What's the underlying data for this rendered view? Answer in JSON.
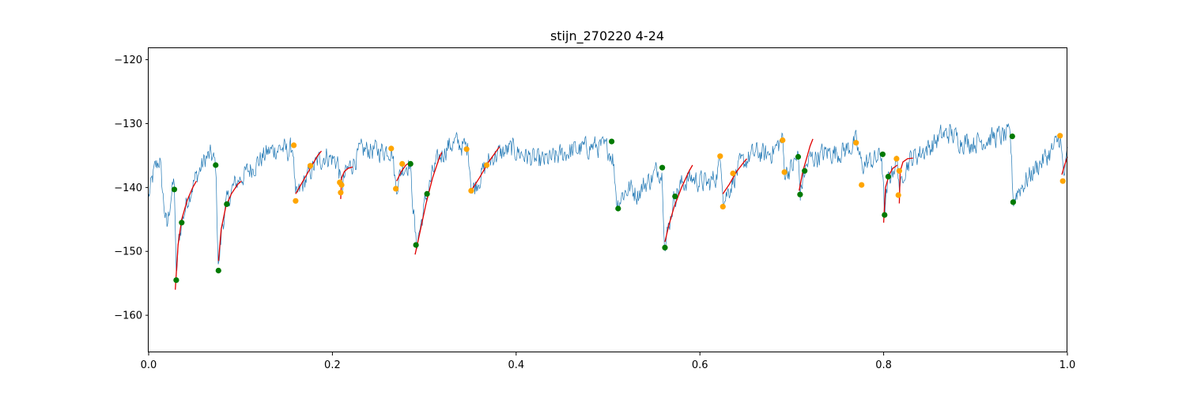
{
  "chart_data": {
    "type": "line",
    "title": "stijn_270220 4-24",
    "xlabel": "",
    "ylabel": "",
    "xlim": [
      0.0,
      1.0
    ],
    "ylim": [
      -165.8,
      -118.2
    ],
    "xticks": [
      0.0,
      0.2,
      0.4,
      0.6,
      0.8,
      1.0
    ],
    "xtick_labels": [
      "0.0",
      "0.2",
      "0.4",
      "0.6",
      "0.8",
      "1.0"
    ],
    "yticks": [
      -160,
      -150,
      -140,
      -130,
      -120
    ],
    "ytick_labels": [
      "−160",
      "−150",
      "−140",
      "−130",
      "−120"
    ],
    "grid": false,
    "colors": {
      "trace": "#1f77b4",
      "fit": "#e00000",
      "green_marker": "#007a00",
      "orange_marker": "#ffa500"
    },
    "trace_anchors": [
      [
        0.0,
        -141.5
      ],
      [
        0.006,
        -137.5
      ],
      [
        0.012,
        -135.5
      ],
      [
        0.016,
        -142.0
      ],
      [
        0.02,
        -146.5
      ],
      [
        0.024,
        -141.5
      ],
      [
        0.028,
        -139.0
      ],
      [
        0.03,
        -154.5
      ],
      [
        0.033,
        -148.0
      ],
      [
        0.036,
        -145.5
      ],
      [
        0.042,
        -142.0
      ],
      [
        0.048,
        -139.5
      ],
      [
        0.055,
        -137.5
      ],
      [
        0.062,
        -135.5
      ],
      [
        0.068,
        -135.0
      ],
      [
        0.073,
        -136.5
      ],
      [
        0.076,
        -153.0
      ],
      [
        0.08,
        -146.0
      ],
      [
        0.085,
        -142.5
      ],
      [
        0.092,
        -140.0
      ],
      [
        0.1,
        -138.5
      ],
      [
        0.108,
        -137.5
      ],
      [
        0.115,
        -136.5
      ],
      [
        0.122,
        -135.5
      ],
      [
        0.13,
        -134.5
      ],
      [
        0.138,
        -134.0
      ],
      [
        0.145,
        -133.8
      ],
      [
        0.152,
        -134.5
      ],
      [
        0.157,
        -133.5
      ],
      [
        0.16,
        -142.0
      ],
      [
        0.168,
        -139.5
      ],
      [
        0.176,
        -137.5
      ],
      [
        0.184,
        -136.0
      ],
      [
        0.192,
        -135.0
      ],
      [
        0.2,
        -135.5
      ],
      [
        0.206,
        -136.0
      ],
      [
        0.21,
        -140.5
      ],
      [
        0.214,
        -138.0
      ],
      [
        0.22,
        -136.5
      ],
      [
        0.23,
        -134.5
      ],
      [
        0.24,
        -134.0
      ],
      [
        0.25,
        -134.3
      ],
      [
        0.26,
        -134.0
      ],
      [
        0.265,
        -134.0
      ],
      [
        0.269,
        -140.0
      ],
      [
        0.276,
        -137.0
      ],
      [
        0.284,
        -136.0
      ],
      [
        0.288,
        -143.0
      ],
      [
        0.291,
        -149.0
      ],
      [
        0.296,
        -146.0
      ],
      [
        0.303,
        -141.0
      ],
      [
        0.31,
        -137.5
      ],
      [
        0.318,
        -135.0
      ],
      [
        0.326,
        -133.5
      ],
      [
        0.334,
        -133.0
      ],
      [
        0.342,
        -133.5
      ],
      [
        0.348,
        -134.0
      ],
      [
        0.352,
        -140.5
      ],
      [
        0.36,
        -138.5
      ],
      [
        0.368,
        -136.5
      ],
      [
        0.376,
        -135.0
      ],
      [
        0.386,
        -134.5
      ],
      [
        0.396,
        -134.0
      ],
      [
        0.41,
        -135.0
      ],
      [
        0.425,
        -136.0
      ],
      [
        0.44,
        -135.5
      ],
      [
        0.455,
        -134.5
      ],
      [
        0.47,
        -134.0
      ],
      [
        0.485,
        -133.5
      ],
      [
        0.5,
        -134.0
      ],
      [
        0.505,
        -135.0
      ],
      [
        0.51,
        -142.5
      ],
      [
        0.516,
        -141.0
      ],
      [
        0.524,
        -140.0
      ],
      [
        0.532,
        -141.0
      ],
      [
        0.54,
        -139.5
      ],
      [
        0.548,
        -138.5
      ],
      [
        0.555,
        -137.0
      ],
      [
        0.559,
        -138.0
      ],
      [
        0.562,
        -149.5
      ],
      [
        0.566,
        -146.0
      ],
      [
        0.572,
        -141.5
      ],
      [
        0.58,
        -139.5
      ],
      [
        0.59,
        -138.5
      ],
      [
        0.6,
        -139.0
      ],
      [
        0.61,
        -139.5
      ],
      [
        0.618,
        -138.0
      ],
      [
        0.623,
        -135.5
      ],
      [
        0.626,
        -142.0
      ],
      [
        0.634,
        -139.5
      ],
      [
        0.642,
        -137.0
      ],
      [
        0.652,
        -135.5
      ],
      [
        0.662,
        -134.5
      ],
      [
        0.672,
        -135.0
      ],
      [
        0.682,
        -134.0
      ],
      [
        0.69,
        -132.5
      ],
      [
        0.692,
        -137.5
      ],
      [
        0.7,
        -137.0
      ],
      [
        0.707,
        -135.0
      ],
      [
        0.709,
        -141.0
      ],
      [
        0.714,
        -137.5
      ],
      [
        0.72,
        -135.5
      ],
      [
        0.73,
        -135.0
      ],
      [
        0.74,
        -134.5
      ],
      [
        0.75,
        -134.5
      ],
      [
        0.76,
        -134.0
      ],
      [
        0.77,
        -133.0
      ],
      [
        0.776,
        -136.5
      ],
      [
        0.784,
        -136.0
      ],
      [
        0.792,
        -135.5
      ],
      [
        0.798,
        -134.8
      ],
      [
        0.801,
        -144.5
      ],
      [
        0.805,
        -139.0
      ],
      [
        0.81,
        -137.0
      ],
      [
        0.815,
        -136.0
      ],
      [
        0.818,
        -141.0
      ],
      [
        0.822,
        -137.0
      ],
      [
        0.83,
        -135.5
      ],
      [
        0.84,
        -134.5
      ],
      [
        0.852,
        -133.5
      ],
      [
        0.862,
        -132.0
      ],
      [
        0.872,
        -131.5
      ],
      [
        0.882,
        -132.5
      ],
      [
        0.895,
        -133.0
      ],
      [
        0.91,
        -132.5
      ],
      [
        0.925,
        -132.0
      ],
      [
        0.938,
        -132.0
      ],
      [
        0.941,
        -142.0
      ],
      [
        0.946,
        -140.5
      ],
      [
        0.955,
        -139.0
      ],
      [
        0.965,
        -137.0
      ],
      [
        0.975,
        -135.5
      ],
      [
        0.985,
        -134.0
      ],
      [
        0.992,
        -132.0
      ],
      [
        0.996,
        -138.5
      ],
      [
        1.0,
        -135.0
      ]
    ],
    "fits": [
      [
        [
          0.029,
          -156.0
        ],
        [
          0.032,
          -149.0
        ],
        [
          0.036,
          -145.0
        ],
        [
          0.042,
          -142.0
        ],
        [
          0.048,
          -140.0
        ],
        [
          0.052,
          -139.0
        ]
      ],
      [
        [
          0.076,
          -151.5
        ],
        [
          0.079,
          -146.5
        ],
        [
          0.084,
          -143.0
        ],
        [
          0.09,
          -141.0
        ],
        [
          0.097,
          -139.5
        ],
        [
          0.101,
          -139.0
        ]
      ],
      [
        [
          0.16,
          -141.0
        ],
        [
          0.168,
          -139.0
        ],
        [
          0.176,
          -137.0
        ],
        [
          0.184,
          -135.0
        ],
        [
          0.188,
          -134.3
        ]
      ],
      [
        [
          0.209,
          -141.8
        ],
        [
          0.21,
          -138.5
        ],
        [
          0.213,
          -137.5
        ],
        [
          0.217,
          -137.0
        ],
        [
          0.222,
          -136.8
        ]
      ],
      [
        [
          0.27,
          -139.0
        ],
        [
          0.275,
          -137.5
        ],
        [
          0.28,
          -136.5
        ],
        [
          0.285,
          -136.0
        ]
      ],
      [
        [
          0.29,
          -150.5
        ],
        [
          0.296,
          -146.5
        ],
        [
          0.302,
          -142.5
        ],
        [
          0.309,
          -138.5
        ],
        [
          0.316,
          -135.5
        ],
        [
          0.319,
          -134.5
        ]
      ],
      [
        [
          0.351,
          -140.5
        ],
        [
          0.36,
          -138.5
        ],
        [
          0.37,
          -136.0
        ],
        [
          0.38,
          -134.0
        ],
        [
          0.382,
          -133.6
        ]
      ],
      [
        [
          0.562,
          -148.5
        ],
        [
          0.566,
          -146.0
        ],
        [
          0.572,
          -143.0
        ],
        [
          0.58,
          -140.0
        ],
        [
          0.588,
          -137.5
        ],
        [
          0.592,
          -136.5
        ]
      ],
      [
        [
          0.625,
          -141.0
        ],
        [
          0.632,
          -139.5
        ],
        [
          0.64,
          -137.5
        ],
        [
          0.648,
          -136.0
        ],
        [
          0.651,
          -135.5
        ]
      ],
      [
        [
          0.708,
          -140.5
        ],
        [
          0.712,
          -137.5
        ],
        [
          0.716,
          -135.5
        ],
        [
          0.72,
          -133.5
        ],
        [
          0.723,
          -132.4
        ]
      ],
      [
        [
          0.8,
          -145.5
        ],
        [
          0.802,
          -140.0
        ],
        [
          0.806,
          -138.0
        ],
        [
          0.81,
          -137.0
        ],
        [
          0.815,
          -136.5
        ]
      ],
      [
        [
          0.817,
          -142.5
        ],
        [
          0.818,
          -137.5
        ],
        [
          0.821,
          -136.0
        ],
        [
          0.826,
          -135.5
        ],
        [
          0.832,
          -135.4
        ]
      ],
      [
        [
          0.994,
          -138.0
        ],
        [
          0.997,
          -136.5
        ],
        [
          1.0,
          -135.2
        ]
      ]
    ],
    "green_points": [
      [
        0.028,
        -140.3
      ],
      [
        0.03,
        -154.5
      ],
      [
        0.036,
        -145.5
      ],
      [
        0.073,
        -136.5
      ],
      [
        0.076,
        -153.0
      ],
      [
        0.085,
        -142.6
      ],
      [
        0.285,
        -136.3
      ],
      [
        0.291,
        -149.0
      ],
      [
        0.303,
        -141.0
      ],
      [
        0.504,
        -132.8
      ],
      [
        0.511,
        -143.3
      ],
      [
        0.559,
        -136.9
      ],
      [
        0.562,
        -149.4
      ],
      [
        0.573,
        -141.4
      ],
      [
        0.707,
        -135.2
      ],
      [
        0.709,
        -141.1
      ],
      [
        0.714,
        -137.4
      ],
      [
        0.799,
        -134.8
      ],
      [
        0.801,
        -144.3
      ],
      [
        0.805,
        -138.3
      ],
      [
        0.94,
        -132.0
      ],
      [
        0.941,
        -142.3
      ]
    ],
    "orange_points": [
      [
        0.158,
        -133.4
      ],
      [
        0.16,
        -142.1
      ],
      [
        0.176,
        -136.6
      ],
      [
        0.208,
        -139.2
      ],
      [
        0.209,
        -140.8
      ],
      [
        0.21,
        -139.6
      ],
      [
        0.264,
        -133.9
      ],
      [
        0.269,
        -140.2
      ],
      [
        0.276,
        -136.3
      ],
      [
        0.346,
        -134.0
      ],
      [
        0.351,
        -140.5
      ],
      [
        0.368,
        -136.5
      ],
      [
        0.622,
        -135.1
      ],
      [
        0.625,
        -143.0
      ],
      [
        0.636,
        -137.8
      ],
      [
        0.69,
        -132.6
      ],
      [
        0.692,
        -137.6
      ],
      [
        0.77,
        -133.0
      ],
      [
        0.776,
        -139.6
      ],
      [
        0.814,
        -135.5
      ],
      [
        0.816,
        -141.2
      ],
      [
        0.817,
        -137.4
      ],
      [
        0.992,
        -131.9
      ],
      [
        0.995,
        -139.0
      ]
    ]
  }
}
